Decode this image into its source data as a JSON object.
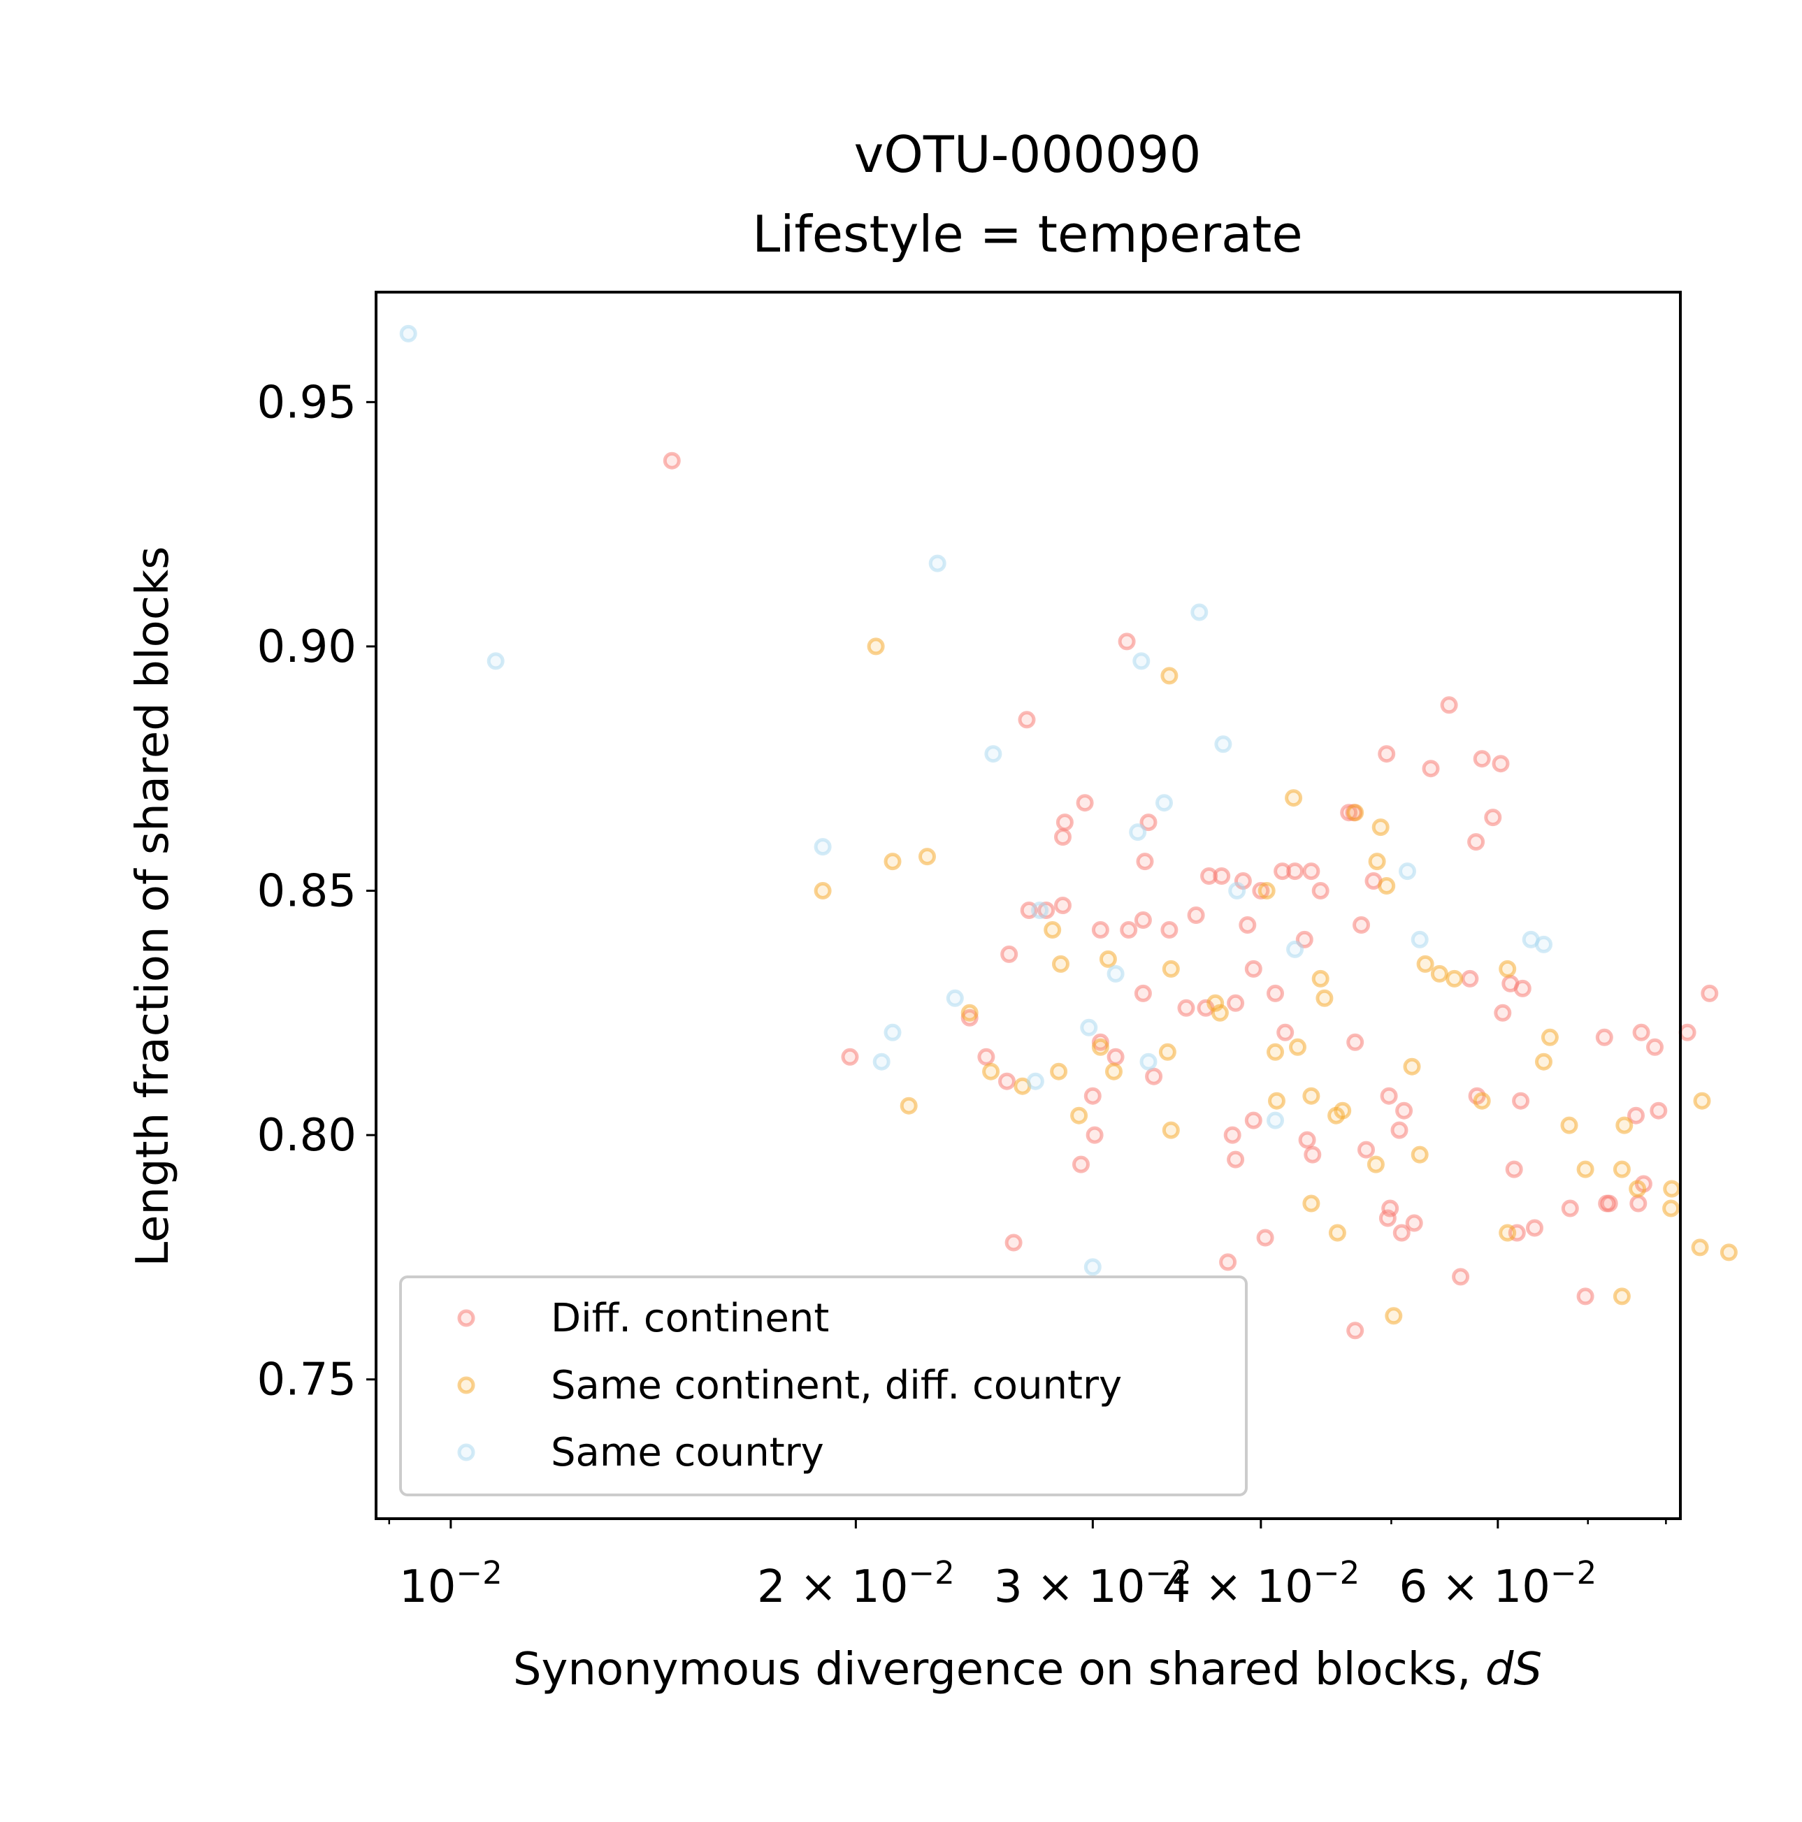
{
  "chart_data": {
    "type": "scatter",
    "title": "vOTU-000090",
    "subtitle": "Lifestyle = temperate",
    "xlabel": "Synonymous divergence on shared blocks, ",
    "xlabel_italic": "dS",
    "ylabel": "Length fraction of shared blocks",
    "xscale": "log",
    "xlim": [
      0.0088,
      0.082
    ],
    "ylim": [
      0.7215,
      0.9725
    ],
    "grid": false,
    "legend_position": "lower-left",
    "xticks": [
      {
        "value": 0.01,
        "mant": "10",
        "exp": "−2"
      },
      {
        "value": 0.02,
        "mant": "2 × 10",
        "exp": "−2"
      },
      {
        "value": 0.03,
        "mant": "3 × 10",
        "exp": "−2"
      },
      {
        "value": 0.04,
        "mant": "4 × 10",
        "exp": "−2"
      },
      {
        "value": 0.06,
        "mant": "6 × 10",
        "exp": "−2"
      }
    ],
    "xminor": [
      0.009,
      0.05,
      0.07,
      0.08
    ],
    "yticks": [
      {
        "value": 0.75,
        "label": "0.75"
      },
      {
        "value": 0.8,
        "label": "0.80"
      },
      {
        "value": 0.85,
        "label": "0.85"
      },
      {
        "value": 0.9,
        "label": "0.90"
      },
      {
        "value": 0.95,
        "label": "0.95"
      }
    ],
    "series": [
      {
        "name": "Diff. continent",
        "color": "#f8766d",
        "points": [
          [
            0.0146,
            0.938
          ],
          [
            0.0318,
            0.901
          ],
          [
            0.0268,
            0.885
          ],
          [
            0.0496,
            0.878
          ],
          [
            0.0552,
            0.888
          ],
          [
            0.0535,
            0.875
          ],
          [
            0.0584,
            0.877
          ],
          [
            0.0603,
            0.876
          ],
          [
            0.0296,
            0.868
          ],
          [
            0.0465,
            0.866
          ],
          [
            0.0469,
            0.866
          ],
          [
            0.0595,
            0.865
          ],
          [
            0.0578,
            0.86
          ],
          [
            0.0286,
            0.864
          ],
          [
            0.0285,
            0.861
          ],
          [
            0.033,
            0.864
          ],
          [
            0.0328,
            0.856
          ],
          [
            0.0374,
            0.853
          ],
          [
            0.0366,
            0.853
          ],
          [
            0.0388,
            0.852
          ],
          [
            0.0415,
            0.854
          ],
          [
            0.0424,
            0.854
          ],
          [
            0.0436,
            0.854
          ],
          [
            0.0443,
            0.85
          ],
          [
            0.04,
            0.85
          ],
          [
            0.0485,
            0.852
          ],
          [
            0.0269,
            0.846
          ],
          [
            0.0277,
            0.846
          ],
          [
            0.0285,
            0.847
          ],
          [
            0.0304,
            0.842
          ],
          [
            0.0319,
            0.842
          ],
          [
            0.0327,
            0.844
          ],
          [
            0.0342,
            0.842
          ],
          [
            0.0358,
            0.845
          ],
          [
            0.0391,
            0.843
          ],
          [
            0.0431,
            0.84
          ],
          [
            0.0475,
            0.843
          ],
          [
            0.026,
            0.837
          ],
          [
            0.0395,
            0.834
          ],
          [
            0.041,
            0.829
          ],
          [
            0.0572,
            0.832
          ],
          [
            0.0613,
            0.831
          ],
          [
            0.0626,
            0.83
          ],
          [
            0.0243,
            0.824
          ],
          [
            0.0327,
            0.829
          ],
          [
            0.0352,
            0.826
          ],
          [
            0.0364,
            0.826
          ],
          [
            0.0383,
            0.827
          ],
          [
            0.0417,
            0.821
          ],
          [
            0.047,
            0.819
          ],
          [
            0.0605,
            0.825
          ],
          [
            0.072,
            0.82
          ],
          [
            0.0767,
            0.821
          ],
          [
            0.0785,
            0.818
          ],
          [
            0.083,
            0.821
          ],
          [
            0.0862,
            0.829
          ],
          [
            0.0198,
            0.816
          ],
          [
            0.025,
            0.816
          ],
          [
            0.0259,
            0.811
          ],
          [
            0.0304,
            0.819
          ],
          [
            0.0312,
            0.816
          ],
          [
            0.0333,
            0.812
          ],
          [
            0.0498,
            0.808
          ],
          [
            0.0579,
            0.808
          ],
          [
            0.0624,
            0.807
          ],
          [
            0.03,
            0.808
          ],
          [
            0.0511,
            0.805
          ],
          [
            0.076,
            0.804
          ],
          [
            0.079,
            0.805
          ],
          [
            0.0301,
            0.8
          ],
          [
            0.0381,
            0.8
          ],
          [
            0.0395,
            0.803
          ],
          [
            0.0433,
            0.799
          ],
          [
            0.0437,
            0.796
          ],
          [
            0.0479,
            0.797
          ],
          [
            0.0507,
            0.801
          ],
          [
            0.0294,
            0.794
          ],
          [
            0.0383,
            0.795
          ],
          [
            0.0617,
            0.793
          ],
          [
            0.0639,
            0.781
          ],
          [
            0.062,
            0.78
          ],
          [
            0.0679,
            0.785
          ],
          [
            0.0726,
            0.786
          ],
          [
            0.0723,
            0.786
          ],
          [
            0.0763,
            0.786
          ],
          [
            0.077,
            0.79
          ],
          [
            0.0499,
            0.785
          ],
          [
            0.0509,
            0.78
          ],
          [
            0.0497,
            0.783
          ],
          [
            0.052,
            0.782
          ],
          [
            0.0262,
            0.778
          ],
          [
            0.0378,
            0.774
          ],
          [
            0.0403,
            0.779
          ],
          [
            0.0563,
            0.771
          ],
          [
            0.0697,
            0.767
          ],
          [
            0.047,
            0.76
          ]
        ]
      },
      {
        "name": "Same continent, diff. country",
        "color": "#f5a623",
        "points": [
          [
            0.0207,
            0.9
          ],
          [
            0.0342,
            0.894
          ],
          [
            0.0189,
            0.85
          ],
          [
            0.0213,
            0.856
          ],
          [
            0.0226,
            0.857
          ],
          [
            0.0423,
            0.869
          ],
          [
            0.047,
            0.866
          ],
          [
            0.0491,
            0.863
          ],
          [
            0.0488,
            0.856
          ],
          [
            0.0496,
            0.851
          ],
          [
            0.0404,
            0.85
          ],
          [
            0.028,
            0.842
          ],
          [
            0.0284,
            0.835
          ],
          [
            0.0308,
            0.836
          ],
          [
            0.0343,
            0.834
          ],
          [
            0.037,
            0.827
          ],
          [
            0.0373,
            0.825
          ],
          [
            0.0443,
            0.832
          ],
          [
            0.0446,
            0.828
          ],
          [
            0.053,
            0.835
          ],
          [
            0.0543,
            0.833
          ],
          [
            0.0557,
            0.832
          ],
          [
            0.061,
            0.834
          ],
          [
            0.0243,
            0.825
          ],
          [
            0.0304,
            0.818
          ],
          [
            0.0311,
            0.813
          ],
          [
            0.0341,
            0.817
          ],
          [
            0.041,
            0.817
          ],
          [
            0.0426,
            0.818
          ],
          [
            0.0656,
            0.82
          ],
          [
            0.0649,
            0.815
          ],
          [
            0.0252,
            0.813
          ],
          [
            0.0266,
            0.81
          ],
          [
            0.0283,
            0.813
          ],
          [
            0.0518,
            0.814
          ],
          [
            0.0219,
            0.806
          ],
          [
            0.0293,
            0.804
          ],
          [
            0.0343,
            0.801
          ],
          [
            0.0411,
            0.807
          ],
          [
            0.0436,
            0.808
          ],
          [
            0.0455,
            0.804
          ],
          [
            0.046,
            0.805
          ],
          [
            0.0584,
            0.807
          ],
          [
            0.0678,
            0.802
          ],
          [
            0.0745,
            0.802
          ],
          [
            0.0851,
            0.807
          ],
          [
            0.0487,
            0.794
          ],
          [
            0.0525,
            0.796
          ],
          [
            0.0697,
            0.793
          ],
          [
            0.0742,
            0.793
          ],
          [
            0.0762,
            0.789
          ],
          [
            0.0808,
            0.789
          ],
          [
            0.0436,
            0.786
          ],
          [
            0.0456,
            0.78
          ],
          [
            0.061,
            0.78
          ],
          [
            0.0807,
            0.785
          ],
          [
            0.0848,
            0.777
          ],
          [
            0.0891,
            0.776
          ],
          [
            0.0502,
            0.763
          ],
          [
            0.0742,
            0.767
          ]
        ]
      },
      {
        "name": "Same country",
        "color": "#a7d8ef",
        "points": [
          [
            0.0093,
            0.964
          ],
          [
            0.0108,
            0.897
          ],
          [
            0.023,
            0.917
          ],
          [
            0.0326,
            0.897
          ],
          [
            0.036,
            0.907
          ],
          [
            0.0375,
            0.88
          ],
          [
            0.0253,
            0.878
          ],
          [
            0.0189,
            0.859
          ],
          [
            0.0339,
            0.868
          ],
          [
            0.0324,
            0.862
          ],
          [
            0.0514,
            0.854
          ],
          [
            0.0274,
            0.846
          ],
          [
            0.0384,
            0.85
          ],
          [
            0.0525,
            0.84
          ],
          [
            0.0424,
            0.838
          ],
          [
            0.0635,
            0.84
          ],
          [
            0.0649,
            0.839
          ],
          [
            0.0312,
            0.833
          ],
          [
            0.0237,
            0.828
          ],
          [
            0.0213,
            0.821
          ],
          [
            0.0298,
            0.822
          ],
          [
            0.0209,
            0.815
          ],
          [
            0.033,
            0.815
          ],
          [
            0.0272,
            0.811
          ],
          [
            0.041,
            0.803
          ],
          [
            0.03,
            0.773
          ]
        ]
      }
    ]
  }
}
